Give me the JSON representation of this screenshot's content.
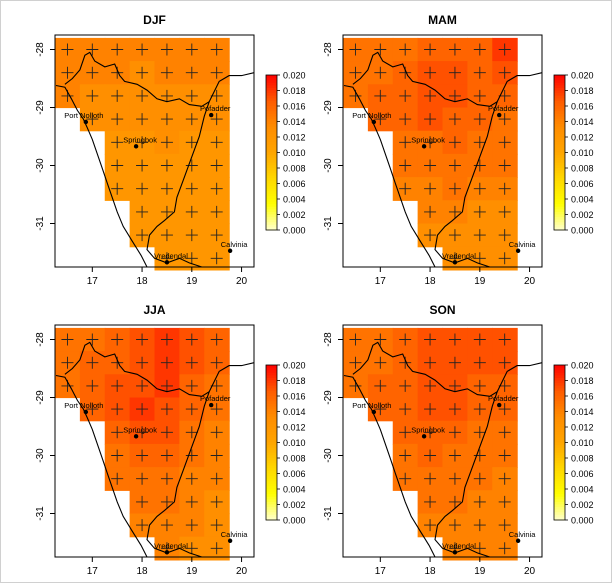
{
  "figure": {
    "panels": [
      {
        "title": "DJF",
        "grid": [
          [
            0.014,
            0.014,
            0.014,
            0.014,
            0.014,
            0.014,
            0.014
          ],
          [
            0.014,
            0.014,
            0.014,
            0.013,
            0.014,
            0.014,
            0.014
          ],
          [
            0.014,
            0.013,
            0.013,
            0.013,
            0.013,
            0.013,
            0.013
          ],
          [
            null,
            0.013,
            0.013,
            0.013,
            0.013,
            0.013,
            0.013
          ],
          [
            null,
            null,
            0.012,
            0.012,
            0.013,
            0.012,
            0.012
          ],
          [
            null,
            null,
            0.012,
            0.012,
            0.012,
            0.012,
            0.012
          ],
          [
            null,
            null,
            0.012,
            0.012,
            0.012,
            0.012,
            0.012
          ],
          [
            null,
            null,
            null,
            0.012,
            0.012,
            0.012,
            0.012
          ],
          [
            null,
            null,
            null,
            0.012,
            0.012,
            0.012,
            0.012
          ],
          [
            null,
            null,
            null,
            null,
            0.012,
            0.012,
            0.012
          ]
        ]
      },
      {
        "title": "MAM",
        "grid": [
          [
            0.015,
            0.015,
            0.015,
            0.016,
            0.016,
            0.016,
            0.018
          ],
          [
            0.015,
            0.015,
            0.016,
            0.017,
            0.017,
            0.016,
            0.017
          ],
          [
            0.015,
            0.016,
            0.016,
            0.017,
            0.017,
            0.016,
            0.016
          ],
          [
            null,
            0.016,
            0.016,
            0.017,
            0.016,
            0.016,
            0.015
          ],
          [
            null,
            null,
            0.015,
            0.015,
            0.016,
            0.015,
            0.015
          ],
          [
            null,
            null,
            0.015,
            0.015,
            0.015,
            0.015,
            0.015
          ],
          [
            null,
            null,
            0.014,
            0.014,
            0.015,
            0.014,
            0.014
          ],
          [
            null,
            null,
            null,
            0.014,
            0.014,
            0.013,
            0.013
          ],
          [
            null,
            null,
            null,
            0.013,
            0.013,
            0.013,
            0.013
          ],
          [
            null,
            null,
            null,
            null,
            0.013,
            0.013,
            0.013
          ]
        ]
      },
      {
        "title": "JJA",
        "grid": [
          [
            0.015,
            0.015,
            0.016,
            0.017,
            0.018,
            0.017,
            0.016
          ],
          [
            0.015,
            0.016,
            0.016,
            0.017,
            0.018,
            0.017,
            0.016
          ],
          [
            0.015,
            0.016,
            0.017,
            0.017,
            0.018,
            0.016,
            0.015
          ],
          [
            null,
            0.016,
            0.017,
            0.018,
            0.017,
            0.016,
            0.015
          ],
          [
            null,
            null,
            0.016,
            0.017,
            0.017,
            0.015,
            0.014
          ],
          [
            null,
            null,
            0.015,
            0.016,
            0.016,
            0.015,
            0.014
          ],
          [
            null,
            null,
            0.015,
            0.015,
            0.015,
            0.014,
            0.014
          ],
          [
            null,
            null,
            null,
            0.015,
            0.015,
            0.014,
            0.013
          ],
          [
            null,
            null,
            null,
            0.014,
            0.014,
            0.014,
            0.013
          ],
          [
            null,
            null,
            null,
            null,
            0.014,
            0.013,
            0.013
          ]
        ]
      },
      {
        "title": "SON",
        "grid": [
          [
            0.015,
            0.015,
            0.016,
            0.017,
            0.017,
            0.017,
            0.017
          ],
          [
            0.015,
            0.015,
            0.016,
            0.017,
            0.017,
            0.017,
            0.017
          ],
          [
            0.015,
            0.016,
            0.016,
            0.017,
            0.017,
            0.016,
            0.016
          ],
          [
            null,
            0.016,
            0.016,
            0.017,
            0.017,
            0.016,
            0.016
          ],
          [
            null,
            null,
            0.016,
            0.016,
            0.016,
            0.015,
            0.015
          ],
          [
            null,
            null,
            0.015,
            0.016,
            0.015,
            0.015,
            0.015
          ],
          [
            null,
            null,
            0.015,
            0.015,
            0.015,
            0.015,
            0.014
          ],
          [
            null,
            null,
            null,
            0.015,
            0.015,
            0.014,
            0.014
          ],
          [
            null,
            null,
            null,
            0.014,
            0.014,
            0.014,
            0.014
          ],
          [
            null,
            null,
            null,
            null,
            0.014,
            0.014,
            0.014
          ]
        ]
      }
    ],
    "extent": {
      "lon_min": 16.25,
      "lon_max": 20.25,
      "lat_min": -31.75,
      "lat_max": -27.75
    },
    "grid_origin": {
      "lon_first": 16.5,
      "lat_first": -28.0,
      "step_lon": 0.5,
      "step_lat": 0.4
    },
    "x_ticks": [
      "17",
      "18",
      "19",
      "20"
    ],
    "x_tick_values": [
      17,
      18,
      19,
      20
    ],
    "y_ticks": [
      "-28",
      "-29",
      "-30",
      "-31"
    ],
    "y_tick_values": [
      -28,
      -29,
      -30,
      -31
    ],
    "colorbar": {
      "labels": [
        "0.020",
        "0.018",
        "0.016",
        "0.014",
        "0.012",
        "0.010",
        "0.008",
        "0.006",
        "0.004",
        "0.002",
        "0.000"
      ],
      "min": 0.0,
      "max": 0.02,
      "ramp": [
        "#ffffcc",
        "#ffff00",
        "#ffd700",
        "#ffa500",
        "#ff8c00",
        "#ff5a00",
        "#ff0000"
      ]
    },
    "towns": [
      {
        "name": "Port Nolloth",
        "lon": 16.87,
        "lat": -29.25
      },
      {
        "name": "Springbok",
        "lon": 17.88,
        "lat": -29.67
      },
      {
        "name": "Pofadder",
        "lon": 19.39,
        "lat": -29.13
      },
      {
        "name": "Vredendal",
        "lon": 18.5,
        "lat": -31.67
      },
      {
        "name": "Calvinia",
        "lon": 19.77,
        "lat": -31.47
      }
    ],
    "colors": {
      "missing": "#ffffff",
      "lines": "#000000"
    }
  }
}
